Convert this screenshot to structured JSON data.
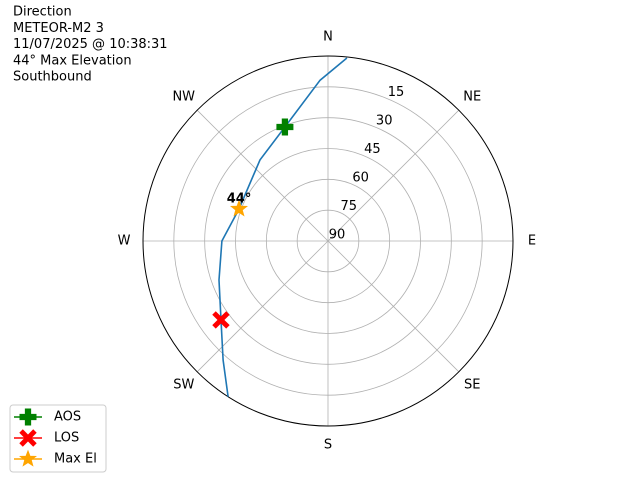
{
  "chart_data": {
    "type": "polar",
    "title_lines": [
      "Direction",
      "METEOR-M2 3",
      "11/07/2025 @ 10:38:31",
      "44° Max Elevation",
      "Southbound"
    ],
    "rlim": [
      90,
      0
    ],
    "rticks": [
      15,
      30,
      45,
      60,
      75,
      90
    ],
    "thetaticks": [
      {
        "value": 0,
        "label": "N"
      },
      {
        "value": 45,
        "label": "NE"
      },
      {
        "value": 90,
        "label": "E"
      },
      {
        "value": 135,
        "label": "SE"
      },
      {
        "value": 180,
        "label": "S"
      },
      {
        "value": 225,
        "label": "SW"
      },
      {
        "value": 270,
        "label": "W"
      },
      {
        "value": 315,
        "label": "NW"
      }
    ],
    "grid": true,
    "track": {
      "color": "#1f77b4",
      "azimuth": [
        5.9,
        357.2,
        339.3,
        320,
        289.8,
        270,
        250.3,
        233.6,
        221.4,
        212.7
      ],
      "elevation": [
        0.5,
        11.7,
        30.7,
        38.5,
        44,
        38.4,
        33.7,
        25.3,
        12.8,
        0
      ]
    },
    "series": [
      {
        "name": "AOS",
        "color": "#008000",
        "marker": "plus",
        "azimuth": [
          339.3
        ],
        "elevation": [
          30.7
        ]
      },
      {
        "name": "LOS",
        "color": "#ff0000",
        "marker": "x",
        "azimuth": [
          233.6
        ],
        "elevation": [
          25.3
        ]
      },
      {
        "name": "Max El",
        "color": "#ffa500",
        "marker": "star",
        "azimuth": [
          289.8
        ],
        "elevation": [
          44
        ]
      }
    ],
    "annotation": {
      "text": "44°"
    },
    "legend": "lower left"
  }
}
